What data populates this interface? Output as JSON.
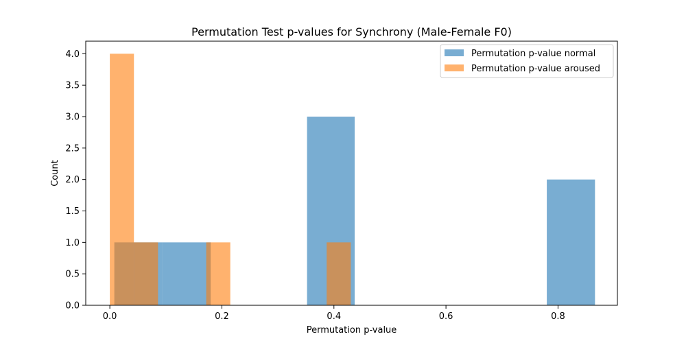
{
  "chart_data": {
    "type": "bar",
    "title": "Permutation Test p-values for Synchrony (Male-Female F0)",
    "xlabel": "Permutation p-value",
    "ylabel": "Count",
    "xlim": [
      -0.043,
      0.906
    ],
    "ylim": [
      0,
      4.2
    ],
    "xticks": [
      0.0,
      0.2,
      0.4,
      0.6,
      0.8
    ],
    "xtick_labels": [
      "0.0",
      "0.2",
      "0.4",
      "0.6",
      "0.8"
    ],
    "yticks": [
      0.0,
      0.5,
      1.0,
      1.5,
      2.0,
      2.5,
      3.0,
      3.5,
      4.0
    ],
    "ytick_labels": [
      "0.0",
      "0.5",
      "1.0",
      "1.5",
      "2.0",
      "2.5",
      "3.0",
      "3.5",
      "4.0"
    ],
    "grid": false,
    "legend_position": "top-right",
    "series": [
      {
        "name": "Permutation p-value normal",
        "color": "#1f77b4",
        "opacity": 0.6,
        "bins": [
          {
            "x0": 0.008,
            "x1": 0.094,
            "count": 1
          },
          {
            "x0": 0.094,
            "x1": 0.18,
            "count": 1
          },
          {
            "x0": 0.18,
            "x1": 0.266,
            "count": 0
          },
          {
            "x0": 0.266,
            "x1": 0.352,
            "count": 0
          },
          {
            "x0": 0.352,
            "x1": 0.437,
            "count": 3
          },
          {
            "x0": 0.437,
            "x1": 0.523,
            "count": 0
          },
          {
            "x0": 0.523,
            "x1": 0.609,
            "count": 0
          },
          {
            "x0": 0.609,
            "x1": 0.695,
            "count": 0
          },
          {
            "x0": 0.695,
            "x1": 0.78,
            "count": 0
          },
          {
            "x0": 0.78,
            "x1": 0.866,
            "count": 2
          }
        ]
      },
      {
        "name": "Permutation p-value aroused",
        "color": "#ff7f0e",
        "opacity": 0.6,
        "bins": [
          {
            "x0": 0.0,
            "x1": 0.043,
            "count": 4
          },
          {
            "x0": 0.043,
            "x1": 0.086,
            "count": 1
          },
          {
            "x0": 0.086,
            "x1": 0.129,
            "count": 0
          },
          {
            "x0": 0.129,
            "x1": 0.172,
            "count": 0
          },
          {
            "x0": 0.172,
            "x1": 0.215,
            "count": 1
          },
          {
            "x0": 0.215,
            "x1": 0.258,
            "count": 0
          },
          {
            "x0": 0.258,
            "x1": 0.301,
            "count": 0
          },
          {
            "x0": 0.301,
            "x1": 0.344,
            "count": 0
          },
          {
            "x0": 0.344,
            "x1": 0.387,
            "count": 0
          },
          {
            "x0": 0.387,
            "x1": 0.43,
            "count": 1
          }
        ]
      }
    ]
  }
}
